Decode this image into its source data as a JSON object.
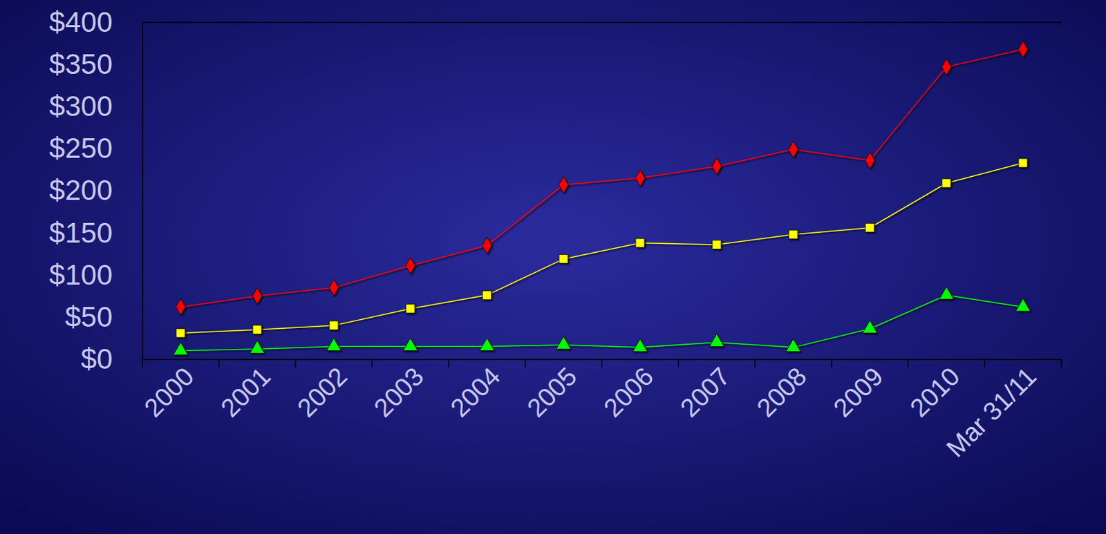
{
  "chart_data": {
    "type": "line",
    "categories": [
      "2000",
      "2001",
      "2002",
      "2003",
      "2004",
      "2005",
      "2006",
      "2007",
      "2008",
      "2009",
      "2010",
      "Mar 31/11"
    ],
    "series": [
      {
        "color": "#ff0000",
        "marker": "diamond",
        "values": [
          62,
          75,
          85,
          111,
          135,
          207,
          215,
          229,
          249,
          236,
          347,
          368
        ]
      },
      {
        "color": "#ffff00",
        "marker": "square",
        "values": [
          31,
          35,
          40,
          60,
          76,
          119,
          138,
          136,
          148,
          156,
          209,
          233
        ]
      },
      {
        "color": "#00ff00",
        "marker": "triangle",
        "values": [
          10,
          12,
          15,
          15,
          15,
          17,
          14,
          20,
          14,
          36,
          76,
          62
        ]
      }
    ],
    "ylim": [
      0,
      400
    ],
    "yticks": [
      {
        "value": 0,
        "label": "$0"
      },
      {
        "value": 50,
        "label": "$50"
      },
      {
        "value": 100,
        "label": "$100"
      },
      {
        "value": 150,
        "label": "$150"
      },
      {
        "value": 200,
        "label": "$200"
      },
      {
        "value": 250,
        "label": "$250"
      },
      {
        "value": 300,
        "label": "$300"
      },
      {
        "value": 350,
        "label": "$350"
      },
      {
        "value": 400,
        "label": "$400"
      }
    ],
    "grid": false
  }
}
